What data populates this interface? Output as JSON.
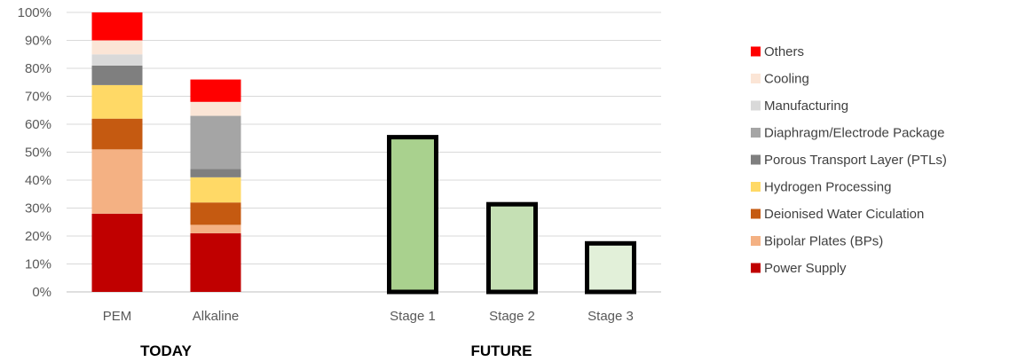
{
  "chart_data": {
    "type": "bar",
    "stacked": true,
    "ylim": [
      0,
      100
    ],
    "y_ticks": [
      0,
      10,
      20,
      30,
      40,
      50,
      60,
      70,
      80,
      90,
      100
    ],
    "y_tick_labels": [
      "0%",
      "10%",
      "20%",
      "30%",
      "40%",
      "50%",
      "60%",
      "70%",
      "80%",
      "90%",
      "100%"
    ],
    "grid": true,
    "legend_position": "right",
    "categories": [
      "PEM",
      "Alkaline",
      "",
      "Stage 1",
      "Stage 2",
      "Stage 3"
    ],
    "groups": [
      {
        "label": "TODAY",
        "categories": [
          "PEM",
          "Alkaline"
        ]
      },
      {
        "label": "FUTURE",
        "categories": [
          "Stage 1",
          "Stage 2",
          "Stage 3"
        ]
      }
    ],
    "series": [
      {
        "name": "Power Supply",
        "color": "#C00000",
        "values": [
          28,
          21,
          0,
          0,
          0,
          0
        ]
      },
      {
        "name": "Bipolar Plates (BPs)",
        "color": "#F4B183",
        "values": [
          23,
          3,
          0,
          0,
          0,
          0
        ]
      },
      {
        "name": "Deionised Water Ciculation",
        "color": "#C55A11",
        "values": [
          11,
          8,
          0,
          0,
          0,
          0
        ]
      },
      {
        "name": "Hydrogen Processing",
        "color": "#FFD966",
        "values": [
          12,
          9,
          0,
          0,
          0,
          0
        ]
      },
      {
        "name": "Porous Transport Layer (PTLs)",
        "color": "#7F7F7F",
        "values": [
          7,
          3,
          0,
          0,
          0,
          0
        ]
      },
      {
        "name": "Diaphragm/Electrode Package",
        "color": "#A5A5A5",
        "values": [
          0,
          19,
          0,
          0,
          0,
          0
        ]
      },
      {
        "name": "Manufacturing",
        "color": "#D9D9D9",
        "values": [
          4,
          0,
          0,
          0,
          0,
          0
        ]
      },
      {
        "name": "Cooling",
        "color": "#FBE5D6",
        "values": [
          5,
          5,
          0,
          0,
          0,
          0
        ]
      },
      {
        "name": "Others",
        "color": "#FF0000",
        "values": [
          10,
          8,
          0,
          0,
          0,
          0
        ]
      }
    ],
    "future_bars": [
      {
        "category": "Stage 1",
        "value": 56,
        "color": "#A9D18E"
      },
      {
        "category": "Stage 2",
        "value": 32,
        "color": "#C5E0B4"
      },
      {
        "category": "Stage 3",
        "value": 18,
        "color": "#E2F0D9"
      }
    ],
    "legend_order": [
      "Others",
      "Cooling",
      "Manufacturing",
      "Diaphragm/Electrode Package",
      "Porous Transport Layer (PTLs)",
      "Hydrogen Processing",
      "Deionised Water Ciculation",
      "Bipolar Plates (BPs)",
      "Power Supply"
    ],
    "colors": {
      "grid": "#D9D9D9",
      "axis": "#BFBFBF",
      "future_outline": "#000000"
    }
  }
}
